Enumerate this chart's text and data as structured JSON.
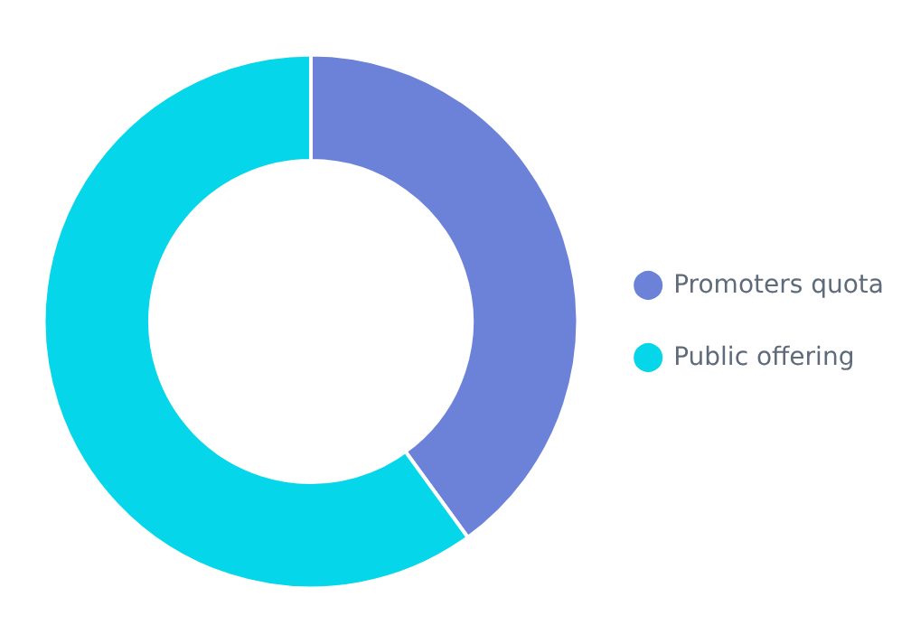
{
  "chart_data": {
    "type": "donut",
    "categories": [
      "Promoters quota",
      "Public offering"
    ],
    "values": [
      40,
      60
    ],
    "colors": [
      "#6c82d9",
      "#05d6e9"
    ],
    "legend": "right"
  }
}
